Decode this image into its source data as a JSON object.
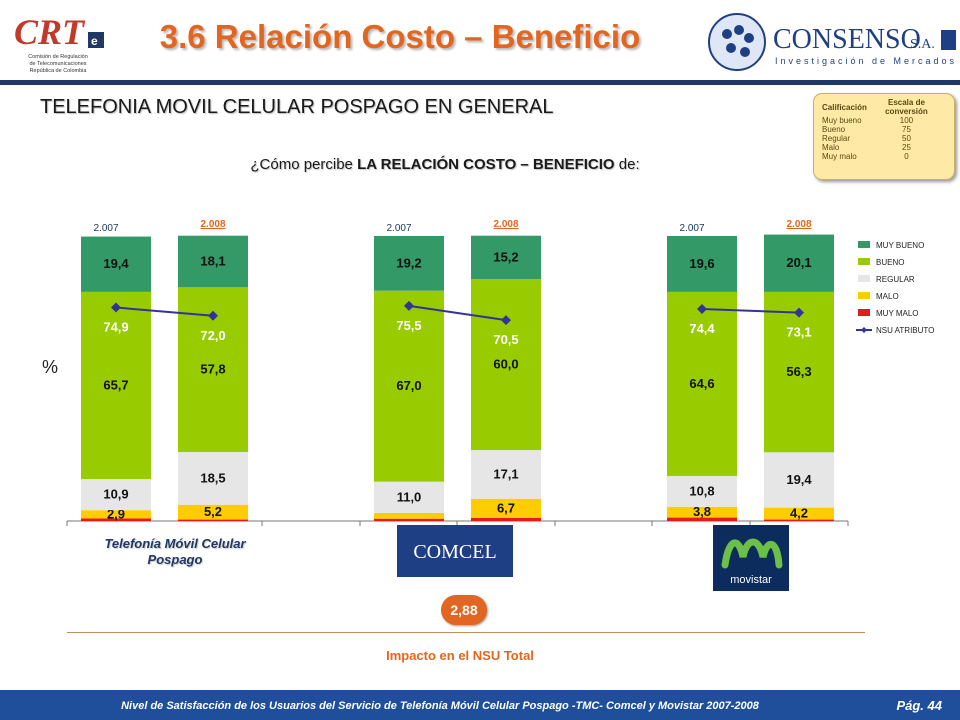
{
  "header": {
    "title": "3.6 Relación Costo – Beneficio",
    "crt_logo": {
      "text": "CRT",
      "subtext": [
        "Comisión de Regulación",
        "de Telecomunicaciones",
        "República de Colombia"
      ]
    },
    "consenso_logo": {
      "name": "CONSENSO",
      "suffix": "S.A.",
      "tagline": "Investigación de Mercados"
    }
  },
  "subtitle": "TELEFONIA MOVIL CELULAR POSPAGO EN GENERAL",
  "question": {
    "prefix": "¿Cómo percibe ",
    "bold": "LA RELACIÓN COSTO – BENEFICIO",
    "suffix": " de:"
  },
  "scale_box": {
    "headers": [
      "Calificación",
      "Escala de conversión"
    ],
    "rows": [
      {
        "label": "Muy bueno",
        "value": "100"
      },
      {
        "label": "Bueno",
        "value": "75"
      },
      {
        "label": "Regular",
        "value": "50"
      },
      {
        "label": "Malo",
        "value": "25"
      },
      {
        "label": "Muy malo",
        "value": "0"
      }
    ]
  },
  "y_axis_label": "%",
  "group_labels": {
    "total": "Telefonía Móvil Celular Pospago",
    "comcel": "COMCEL",
    "movistar": "movistar"
  },
  "impact": {
    "value": "2,88",
    "label": "Impacto en el NSU Total"
  },
  "footer": {
    "text": "Nivel de Satisfacción de los Usuarios del Servicio de Telefonía Móvil Celular Pospago -TMC- Comcel y Movistar 2007-2008",
    "page": "Pág. 44"
  },
  "colors": {
    "muy_bueno": "#339966",
    "bueno": "#99cc00",
    "regular": "#e6e6e6",
    "malo": "#ffcc00",
    "muy_malo": "#e61a1a",
    "nsu": "#33339a",
    "accent": "#e2661f",
    "navy": "#1f3864"
  },
  "chart_data": {
    "type": "bar",
    "stacked": true,
    "ylim": [
      0,
      100
    ],
    "ylabel": "%",
    "legend_position": "right",
    "categories": [
      "2.007",
      "2.008",
      "2.007",
      "2.008",
      "2.007",
      "2.008"
    ],
    "groups": [
      "Telefonía Móvil Celular Pospago",
      "COMCEL",
      "movistar"
    ],
    "series": [
      {
        "name": "MUY MALO",
        "values": [
          0.9,
          0.5,
          0.8,
          1.1,
          1.2,
          0.5
        ],
        "labels": [
          "",
          "",
          "",
          "",
          "",
          ""
        ]
      },
      {
        "name": "MALO",
        "values": [
          2.9,
          5.2,
          2.0,
          6.7,
          3.8,
          4.2
        ],
        "labels": [
          "2,9",
          "5,2",
          "",
          "6,7",
          "3,8",
          "4,2"
        ]
      },
      {
        "name": "REGULAR",
        "values": [
          10.9,
          18.5,
          11.0,
          17.1,
          10.8,
          19.4
        ],
        "labels": [
          "10,9",
          "18,5",
          "11,0",
          "17,1",
          "10,8",
          "19,4"
        ]
      },
      {
        "name": "BUENO",
        "values": [
          65.7,
          57.8,
          67.0,
          60.0,
          64.6,
          56.3
        ],
        "labels": [
          "65,7",
          "57,8",
          "67,0",
          "60,0",
          "64,6",
          "56,3"
        ]
      },
      {
        "name": "MUY BUENO",
        "values": [
          19.4,
          18.1,
          19.2,
          15.2,
          19.6,
          20.1
        ],
        "labels": [
          "19,4",
          "18,1",
          "19,2",
          "15,2",
          "19,6",
          "20,1"
        ]
      }
    ],
    "nsu": {
      "name": "NSU ATRIBUTO",
      "values": [
        74.9,
        72.0,
        75.5,
        70.5,
        74.4,
        73.1
      ],
      "labels": [
        "74,9",
        "72,0",
        "75,5",
        "70,5",
        "74,4",
        "73,1"
      ]
    },
    "year_labels": [
      "2.007",
      "2.008",
      "2.007",
      "2.008",
      "2.007",
      "2.008"
    ]
  }
}
